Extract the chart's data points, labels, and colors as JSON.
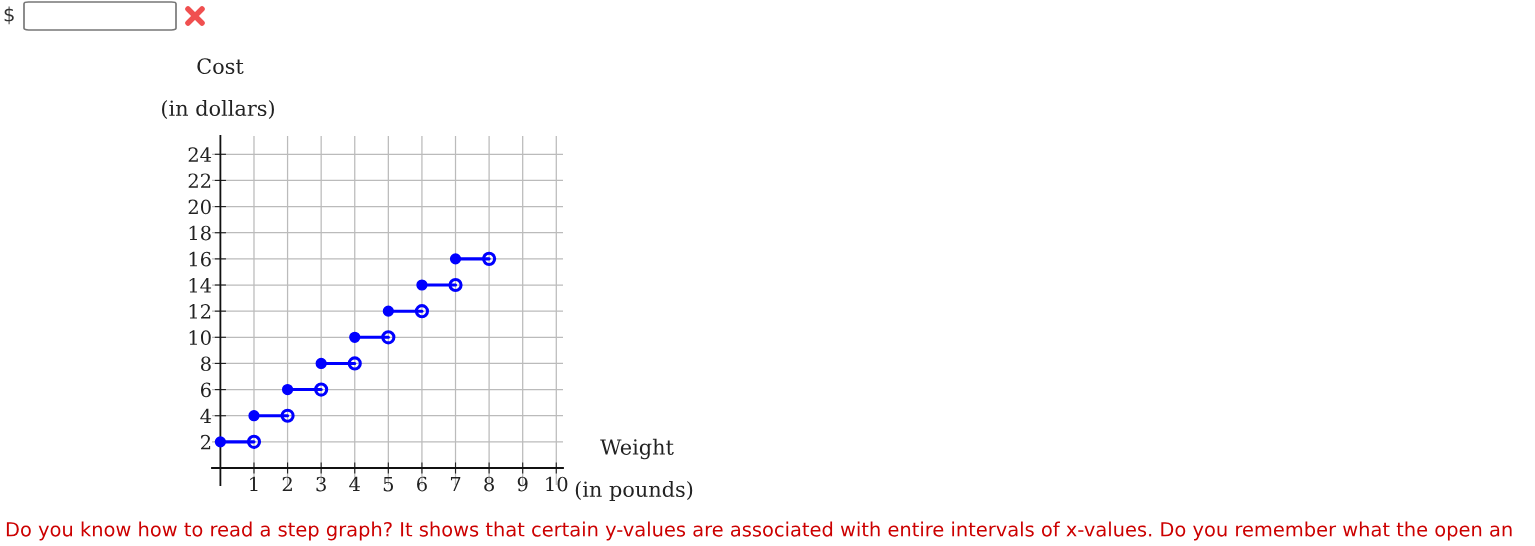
{
  "chart_data": {
    "type": "line",
    "ylabel": "Cost\n(in dollars)",
    "xlabel": "Weight\n(in pounds)",
    "series": [
      {
        "color": "#0000ff",
        "x": [
          0,
          1
        ],
        "values": [
          2,
          2
        ]
      },
      {
        "color": "#0000ff",
        "x": [
          1,
          2
        ],
        "values": [
          4,
          4
        ]
      },
      {
        "color": "#0000ff",
        "x": [
          2,
          3
        ],
        "values": [
          6,
          6
        ]
      },
      {
        "color": "#0000ff",
        "x": [
          3,
          4
        ],
        "values": [
          8,
          8
        ]
      },
      {
        "color": "#0000ff",
        "x": [
          4,
          5
        ],
        "values": [
          10,
          10
        ]
      },
      {
        "color": "#0000ff",
        "x": [
          5,
          6
        ],
        "values": [
          12,
          12
        ]
      },
      {
        "color": "#0000ff",
        "x": [
          6,
          7
        ],
        "values": [
          14,
          14
        ]
      },
      {
        "color": "#0000ff",
        "x": [
          7,
          8
        ],
        "values": [
          16,
          16
        ]
      },
      {
        "type": "scatter",
        "color": "#0000ff",
        "marker": "circle",
        "x": [
          0,
          1,
          2,
          3,
          4,
          5,
          6,
          7
        ],
        "values": [
          2,
          4,
          6,
          8,
          10,
          12,
          14,
          16
        ]
      },
      {
        "type": "scatter",
        "color": "#0000ff",
        "marker": "circle",
        "x": [
          1,
          2,
          3,
          4,
          5,
          6,
          7,
          8
        ],
        "values": [
          2,
          4,
          6,
          8,
          10,
          12,
          14,
          16
        ]
      }
    ],
    "xlim": [
      -0.25,
      10.2
    ],
    "ylim": [
      -1.3,
      25.4
    ],
    "xticks": [
      1,
      2,
      3,
      4,
      5,
      6,
      7,
      8,
      9,
      10
    ],
    "yticks": [
      2,
      4,
      6,
      8,
      10,
      12,
      14,
      16,
      18,
      20,
      22,
      24
    ],
    "grid": true,
    "annotations": [
      "$",
      "Do you know how to read a step graph? It shows that certain y-values are associated with entire intervals of x-values. Do you remember what the open an"
    ]
  }
}
